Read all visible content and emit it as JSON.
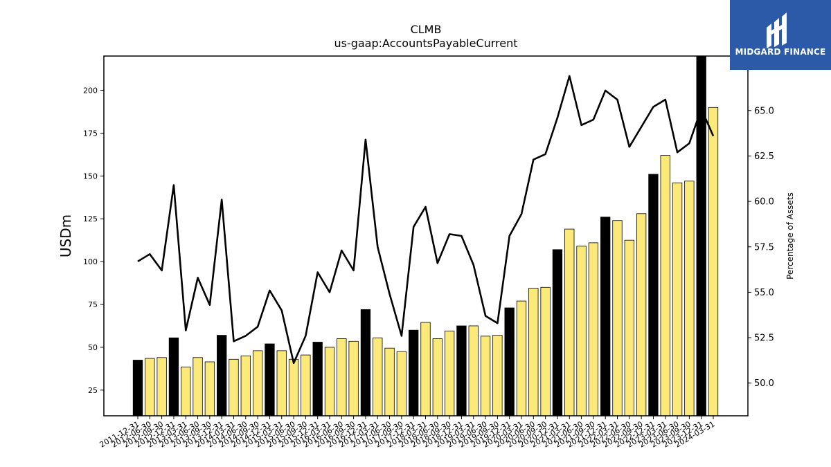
{
  "logo": {
    "text": "MIDGARD FINANCE",
    "bg_color": "#2c5aa8",
    "icon": "midgard-m-logo-icon"
  },
  "chart_data": {
    "type": "bar",
    "title": "CLMB",
    "subtitle": "us-gaap:AccountsPayableCurrent",
    "ylabel": "USDm",
    "y2label": "Percentage of Assets",
    "ylim": [
      10,
      220
    ],
    "y2lim": [
      48.2,
      68.0
    ],
    "yticks": [
      25,
      50,
      75,
      100,
      125,
      150,
      175,
      200
    ],
    "y2ticks": [
      50.0,
      52.5,
      55.0,
      57.5,
      60.0,
      62.5,
      65.0
    ],
    "colors": {
      "annual_bar": "#000000",
      "quarter_bar": "#fbe97a",
      "line": "#000000"
    },
    "categories": [
      "2011-12-31",
      "2012-06-30",
      "2012-09-30",
      "2012-12-31",
      "2013-03-31",
      "2013-06-30",
      "2013-09-30",
      "2013-12-31",
      "2014-03-31",
      "2014-06-30",
      "2014-09-30",
      "2014-12-31",
      "2015-03-31",
      "2015-06-30",
      "2015-09-30",
      "2015-12-31",
      "2016-03-31",
      "2016-06-30",
      "2016-09-30",
      "2016-12-31",
      "2017-03-31",
      "2017-06-30",
      "2017-09-30",
      "2017-12-31",
      "2018-03-31",
      "2018-06-30",
      "2018-09-30",
      "2018-12-31",
      "2019-03-31",
      "2019-06-30",
      "2019-09-30",
      "2019-12-31",
      "2020-03-31",
      "2020-06-30",
      "2020-09-30",
      "2020-12-31",
      "2021-03-31",
      "2021-06-30",
      "2021-09-30",
      "2021-12-31",
      "2022-03-31",
      "2022-06-30",
      "2022-09-30",
      "2022-12-31",
      "2023-03-31",
      "2023-06-30",
      "2023-09-30",
      "2023-12-31",
      "2024-03-31"
    ],
    "series": [
      {
        "kind": "bar",
        "values": [
          42.5,
          43.5,
          44,
          55.5,
          38.5,
          44,
          41.5,
          57,
          43,
          45,
          48,
          52,
          48,
          43,
          45.5,
          53,
          50,
          55,
          53.5,
          72,
          55.5,
          49.5,
          47.5,
          60,
          64.5,
          55,
          59.5,
          62.5,
          62.5,
          56.5,
          57,
          73,
          77,
          84.5,
          85,
          107,
          119,
          109,
          111,
          126,
          124,
          112.5,
          128,
          151,
          162,
          146,
          147,
          220,
          190
        ],
        "annual": [
          true,
          false,
          false,
          true,
          false,
          false,
          false,
          true,
          false,
          false,
          false,
          true,
          false,
          false,
          false,
          true,
          false,
          false,
          false,
          true,
          false,
          false,
          false,
          true,
          false,
          false,
          false,
          true,
          false,
          false,
          false,
          true,
          false,
          false,
          false,
          true,
          false,
          false,
          false,
          true,
          false,
          false,
          false,
          true,
          false,
          false,
          false,
          true,
          false
        ]
      },
      {
        "kind": "line",
        "axis": "right",
        "values": [
          56.7,
          57.1,
          56.2,
          60.9,
          52.9,
          55.8,
          54.3,
          60.1,
          52.3,
          52.6,
          53.1,
          55.1,
          54.0,
          51.1,
          52.6,
          56.1,
          55.0,
          57.3,
          56.2,
          63.4,
          57.5,
          54.9,
          52.6,
          58.6,
          59.7,
          56.6,
          58.2,
          58.1,
          56.5,
          53.7,
          53.3,
          58.1,
          59.3,
          62.3,
          62.6,
          64.6,
          66.9,
          64.2,
          64.5,
          66.1,
          65.6,
          63.0,
          64.1,
          65.2,
          65.6,
          62.7,
          63.2,
          65.1,
          63.6
        ]
      }
    ]
  }
}
